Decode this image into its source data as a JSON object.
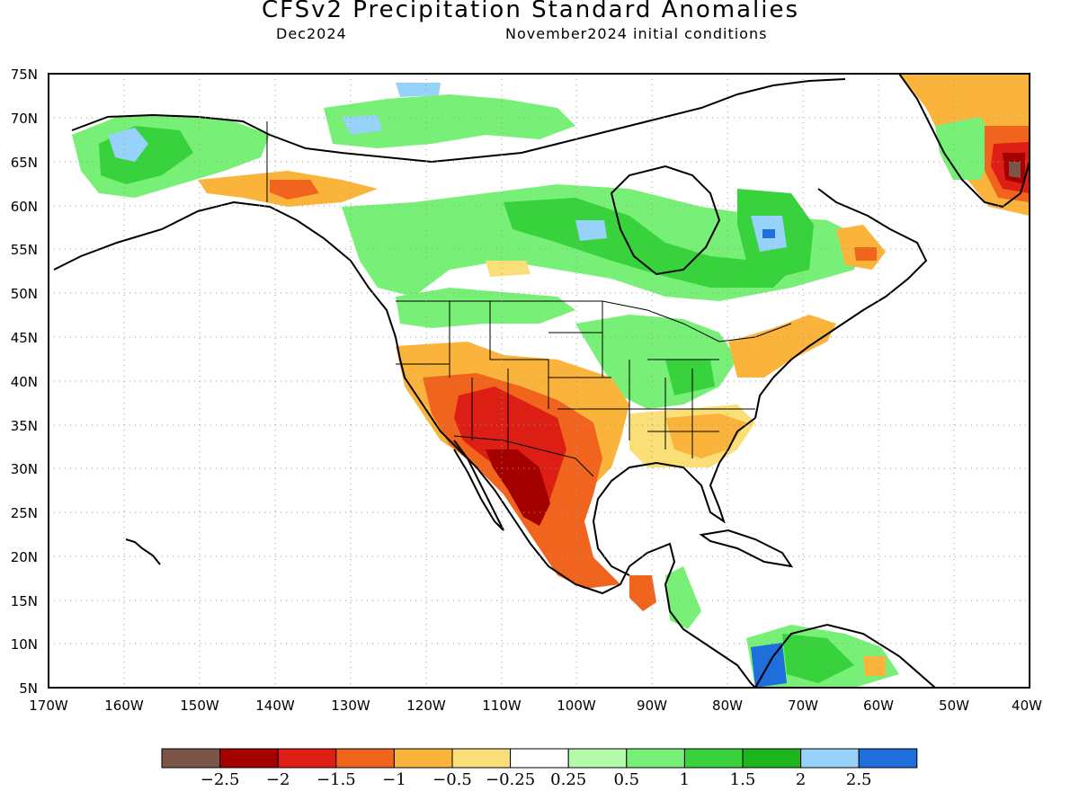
{
  "title": "CFSv2 Precipitation Standard Anomalies",
  "subtitle_left": "Dec2024",
  "subtitle_right": "November2024 initial conditions",
  "lat_labels": [
    "75N",
    "70N",
    "65N",
    "60N",
    "55N",
    "50N",
    "45N",
    "40N",
    "35N",
    "30N",
    "25N",
    "20N",
    "15N",
    "10N",
    "5N"
  ],
  "lon_labels": [
    "170W",
    "160W",
    "150W",
    "140W",
    "130W",
    "120W",
    "110W",
    "100W",
    "90W",
    "80W",
    "70W",
    "60W",
    "50W",
    "40W"
  ],
  "colorbar": {
    "colors": [
      "#7b5548",
      "#a50000",
      "#dc1e14",
      "#f0641e",
      "#fab43c",
      "#fade78",
      "#ffffff",
      "#b4faaa",
      "#78f078",
      "#37d23c",
      "#1eb41e",
      "#96d2fa",
      "#1e6edc"
    ],
    "labels": [
      "−2.5",
      "−2",
      "−1.5",
      "−1",
      "−0.5",
      "−0.25",
      "0.25",
      "0.5",
      "1",
      "1.5",
      "2",
      "2.5"
    ]
  },
  "colors": {
    "land_outline": "#000000",
    "grid": "#9a9a9a"
  }
}
